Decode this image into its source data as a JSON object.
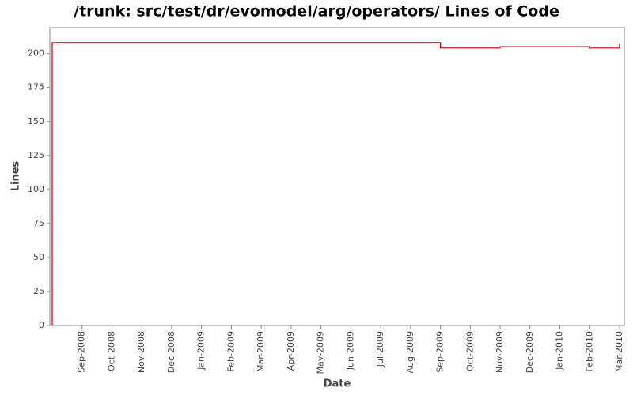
{
  "chart_data": {
    "type": "line",
    "title": "/trunk: src/test/dr/evomodel/arg/operators/ Lines of Code",
    "x_label": "Date",
    "y_label": "Lines",
    "x": [
      "Aug-2008",
      "Aug-2008",
      "Aug-2008",
      "Sep-2009",
      "Sep-2009",
      "Nov-2009",
      "Nov-2009",
      "Feb-2010",
      "Feb-2010",
      "Mar-2010",
      "Mar-2010"
    ],
    "values": [
      0,
      206,
      208,
      208,
      204,
      204,
      205,
      205,
      204,
      204,
      207
    ],
    "color": "#cc0000",
    "xlim": [
      "Aug-2008",
      "Mar-2010"
    ],
    "xticks": [
      "Sep-2008",
      "Oct-2008",
      "Nov-2008",
      "Dec-2008",
      "Jan-2009",
      "Feb-2009",
      "Mar-2009",
      "Apr-2009",
      "May-2009",
      "Jun-2009",
      "Jul-2009",
      "Aug-2009",
      "Sep-2009",
      "Oct-2009",
      "Nov-2009",
      "Dec-2009",
      "Jan-2010",
      "Feb-2010",
      "Mar-2010"
    ],
    "ylim": [
      0,
      219
    ],
    "yticks": [
      0,
      25,
      50,
      75,
      100,
      125,
      150,
      175,
      200
    ],
    "grid": false
  }
}
